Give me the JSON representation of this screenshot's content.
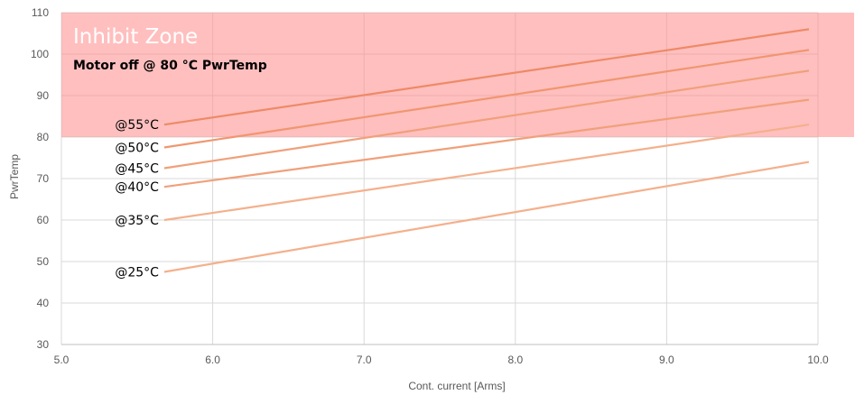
{
  "chart_data": {
    "type": "line",
    "xlabel": "Cont. current [Arms]",
    "ylabel": "PwrTemp",
    "xlim": [
      5.0,
      10.0
    ],
    "ylim": [
      30,
      110
    ],
    "x_ticks": [
      "5.0",
      "6.0",
      "7.0",
      "8.0",
      "9.0",
      "10.0"
    ],
    "y_ticks": [
      "30",
      "40",
      "50",
      "60",
      "70",
      "80",
      "90",
      "100",
      "110"
    ],
    "grid": true,
    "inhibit_zone": {
      "title": "Inhibit Zone",
      "subtitle": "Motor off @ 80 °C PwrTemp",
      "y_from": 80,
      "y_to": 110,
      "color": "#ff8a8a"
    },
    "series": [
      {
        "name": "@55°C",
        "x": [
          5.68,
          9.94
        ],
        "values": [
          83,
          106
        ],
        "color": "#ee8a66"
      },
      {
        "name": "@50°C",
        "x": [
          5.68,
          9.94
        ],
        "values": [
          77.5,
          101
        ],
        "color": "#f09670"
      },
      {
        "name": "@45°C",
        "x": [
          5.68,
          9.94
        ],
        "values": [
          72.5,
          96
        ],
        "color": "#f0a07a"
      },
      {
        "name": "@40°C",
        "x": [
          5.68,
          9.94
        ],
        "values": [
          68,
          89
        ],
        "color": "#f0a07a"
      },
      {
        "name": "@35°C",
        "x": [
          5.68,
          9.94
        ],
        "values": [
          60,
          83
        ],
        "color": "#f4b08c"
      },
      {
        "name": "@25°C",
        "x": [
          5.68,
          9.94
        ],
        "values": [
          47.5,
          74
        ],
        "color": "#f4b08c"
      }
    ]
  }
}
